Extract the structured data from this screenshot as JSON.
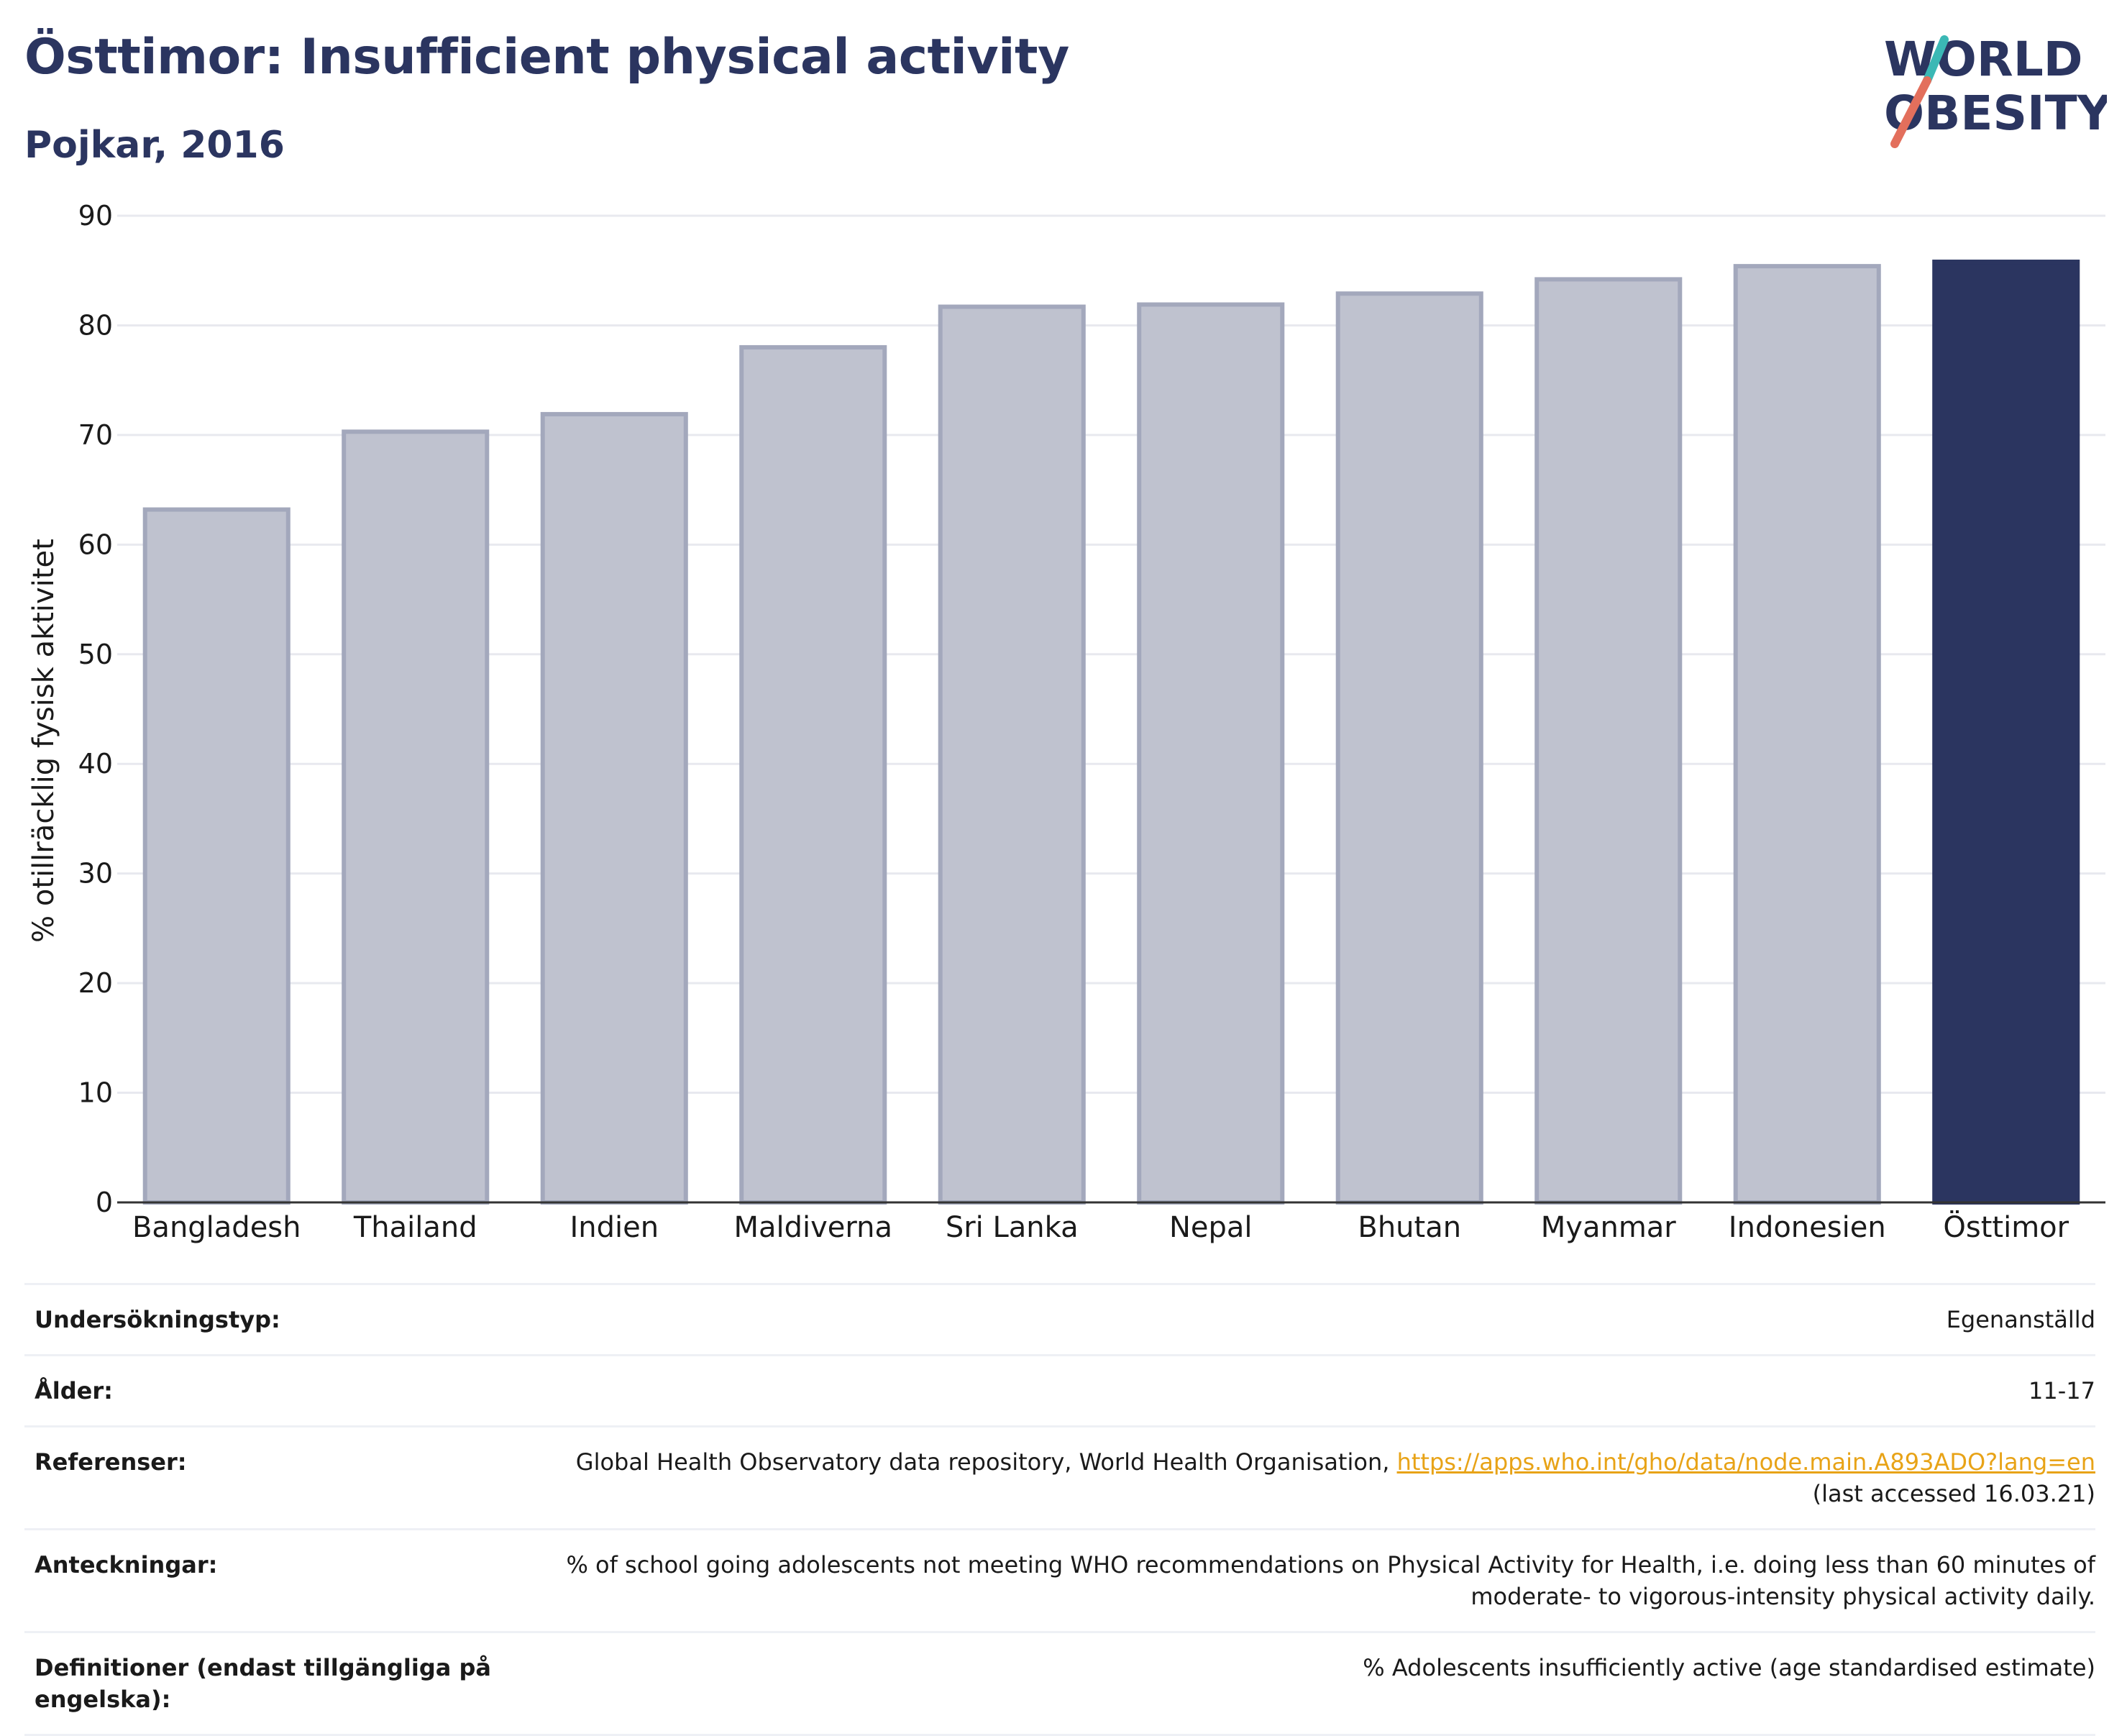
{
  "header": {
    "title": "Östtimor: Insufficient physical activity",
    "subtitle": "Pojkar, 2016",
    "logo_line1": "WORLD",
    "logo_line2": "OBESITY"
  },
  "colors": {
    "highlight": "#2b3560",
    "bar": "#bfc2cf",
    "bar_stroke": "#a3a8bc",
    "grid": "#e8e9ef",
    "logo_teal": "#3bb8b5",
    "logo_coral": "#e36f5c",
    "link": "#e8a317"
  },
  "chart_data": {
    "type": "bar",
    "categories": [
      "Bangladesh",
      "Thailand",
      "Indien",
      "Maldiverna",
      "Sri Lanka",
      "Nepal",
      "Bhutan",
      "Myanmar",
      "Indonesien",
      "Östtimor"
    ],
    "values": [
      63.2,
      70.3,
      71.9,
      78.0,
      81.7,
      81.9,
      82.9,
      84.2,
      85.4,
      85.8
    ],
    "highlight": "Östtimor",
    "ylabel": "% otillräcklig fysisk aktivitet",
    "xlabel": "",
    "ylim": [
      0,
      90
    ],
    "yticks": [
      0,
      10,
      20,
      30,
      40,
      50,
      60,
      70,
      80,
      90
    ],
    "grid": true
  },
  "meta": {
    "rows": [
      {
        "key": "Undersökningstyp:",
        "value": "Egenanställd"
      },
      {
        "key": "Ålder:",
        "value": "11-17"
      },
      {
        "key": "Referenser:",
        "value": "Global Health Observatory data repository, World Health Organisation, ",
        "link": "https://apps.who.int/gho/data/node.main.A893ADO?lang=en",
        "value_line2": "(last accessed 16.03.21)"
      },
      {
        "key": "Anteckningar:",
        "value": "% of school going adolescents not meeting WHO recommendations on Physical Activity for Health, i.e. doing less than 60 minutes of",
        "value_line2": "moderate- to vigorous-intensity physical activity daily."
      },
      {
        "key": "Definitioner (endast tillgängliga på engelska):",
        "value": "% Adolescents insufficiently active (age standardised estimate)"
      }
    ]
  }
}
